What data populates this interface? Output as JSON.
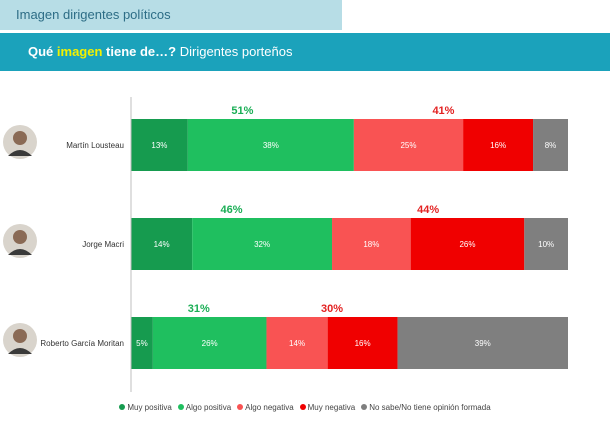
{
  "header": {
    "tab_title": "Imagen dirigentes políticos",
    "subtitle_pre": "Qué ",
    "subtitle_highlight": "imagen",
    "subtitle_mid": " tiene de…?",
    "subtitle_rest": " Dirigentes porteños"
  },
  "colors": {
    "muy_positiva": "#169b4f",
    "algo_positiva": "#1fbf5f",
    "algo_negativa": "#f95353",
    "muy_negativa": "#f00000",
    "no_sabe": "#7f7f7f",
    "positive_total_text": "#1aae55",
    "negative_total_text": "#e32222"
  },
  "chart_data": {
    "type": "bar",
    "orientation": "horizontal",
    "stacked": true,
    "categories": [
      "Martín Lousteau",
      "Jorge Macri",
      "Roberto García Moritan"
    ],
    "series": [
      {
        "name": "Muy positiva",
        "values": [
          13,
          14,
          5
        ]
      },
      {
        "name": "Algo positiva",
        "values": [
          38,
          32,
          26
        ]
      },
      {
        "name": "Algo negativa",
        "values": [
          25,
          18,
          14
        ]
      },
      {
        "name": "Muy negativa",
        "values": [
          16,
          26,
          16
        ]
      },
      {
        "name": "No sabe/No tiene opinión formada",
        "values": [
          8,
          10,
          39
        ]
      }
    ],
    "positive_totals": [
      "51%",
      "46%",
      "31%"
    ],
    "negative_totals": [
      "41%",
      "44%",
      "30%"
    ],
    "xlim": [
      0,
      100
    ],
    "legend_position": "bottom",
    "grid": false,
    "title": "",
    "xlabel": "",
    "ylabel": ""
  }
}
